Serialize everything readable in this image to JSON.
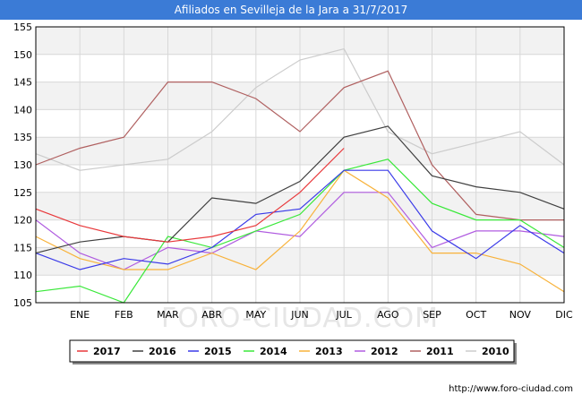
{
  "title": "Afiliados en Sevilleja de la Jara a 31/7/2017",
  "source": "http://www.foro-ciudad.com",
  "watermark": "FORO-CIUDAD.COM",
  "chart_data": {
    "type": "line",
    "title": "Afiliados en Sevilleja de la Jara a 31/7/2017",
    "x": [
      "",
      "ENE",
      "FEB",
      "MAR",
      "ABR",
      "MAY",
      "JUN",
      "JUL",
      "AGO",
      "SEP",
      "OCT",
      "NOV",
      "DIC"
    ],
    "ylim": [
      105,
      155
    ],
    "yticks": [
      105,
      110,
      115,
      120,
      125,
      130,
      135,
      140,
      145,
      150,
      155
    ],
    "grid": true,
    "legend_position": "bottom",
    "series": [
      {
        "name": "2017",
        "color": "#e8383b",
        "values": [
          122,
          119,
          117,
          116,
          117,
          119,
          125,
          133,
          null,
          null,
          null,
          null,
          null
        ]
      },
      {
        "name": "2016",
        "color": "#404040",
        "values": [
          114,
          116,
          117,
          116,
          124,
          123,
          127,
          135,
          137,
          128,
          126,
          125,
          122
        ]
      },
      {
        "name": "2015",
        "color": "#3a3ae8",
        "values": [
          114,
          111,
          113,
          112,
          115,
          121,
          122,
          129,
          129,
          118,
          113,
          119,
          114
        ]
      },
      {
        "name": "2014",
        "color": "#3ae83a",
        "values": [
          107,
          108,
          105,
          117,
          115,
          118,
          121,
          129,
          131,
          123,
          120,
          120,
          115
        ]
      },
      {
        "name": "2013",
        "color": "#f8b23a",
        "values": [
          117,
          113,
          111,
          111,
          114,
          111,
          118,
          129,
          124,
          114,
          114,
          112,
          107
        ]
      },
      {
        "name": "2012",
        "color": "#b05ce0",
        "values": [
          120,
          114,
          111,
          115,
          114,
          118,
          117,
          125,
          125,
          115,
          118,
          118,
          117
        ]
      },
      {
        "name": "2011",
        "color": "#b06060",
        "values": [
          130,
          133,
          135,
          145,
          145,
          142,
          136,
          144,
          147,
          130,
          121,
          120,
          120
        ]
      },
      {
        "name": "2010",
        "color": "#cccccc",
        "values": [
          132,
          129,
          130,
          131,
          136,
          144,
          149,
          151,
          136,
          132,
          134,
          136,
          130
        ]
      }
    ]
  }
}
